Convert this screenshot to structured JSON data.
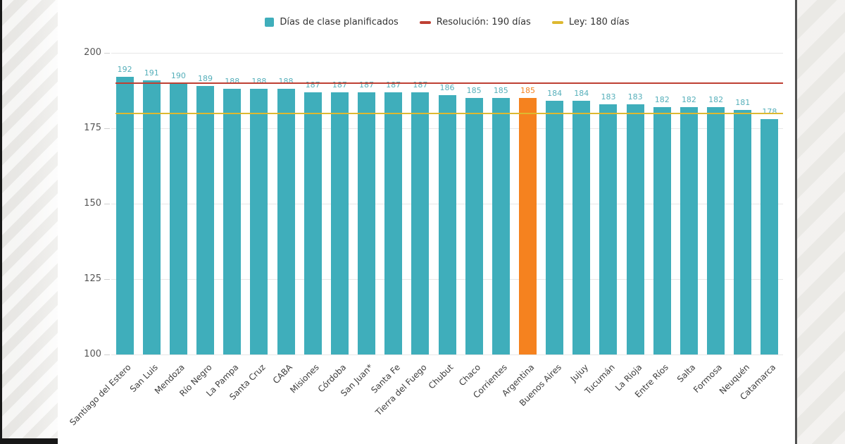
{
  "chart_data": {
    "type": "bar",
    "title": "",
    "series_label": "Días de clase planificados",
    "categories": [
      "Santiago del Estero",
      "San Luis",
      "Mendoza",
      "Río Negro",
      "La Pampa",
      "Santa Cruz",
      "CABA",
      "Misiones",
      "Córdoba",
      "San Juan*",
      "Santa Fe",
      "Tierra del Fuego",
      "Chubut",
      "Chaco",
      "Corrientes",
      "Argentina",
      "Buenos Aires",
      "Jujuy",
      "Tucumán",
      "La Rioja",
      "Entre Ríos",
      "Salta",
      "Formosa",
      "Neuquén",
      "Catamarca"
    ],
    "values": [
      192,
      191,
      190,
      189,
      188,
      188,
      188,
      187,
      187,
      187,
      187,
      187,
      186,
      185,
      185,
      185,
      184,
      184,
      183,
      183,
      182,
      182,
      182,
      181,
      178
    ],
    "bar_color": "#3FAEBB",
    "value_label_color": "#55AFBA",
    "highlight": {
      "category": "Argentina",
      "index": 15,
      "color": "#F5821F"
    },
    "reference_lines": [
      {
        "label": "Resolución: 190 días",
        "value": 190,
        "color": "#BE4033"
      },
      {
        "label": "Ley: 180 días",
        "value": 180,
        "color": "#DDB830"
      }
    ],
    "ylim": [
      100,
      200
    ],
    "yticks": [
      100,
      125,
      150,
      175,
      200
    ],
    "grid": true,
    "legend_position": "top-center",
    "xlabel": "",
    "ylabel": ""
  }
}
